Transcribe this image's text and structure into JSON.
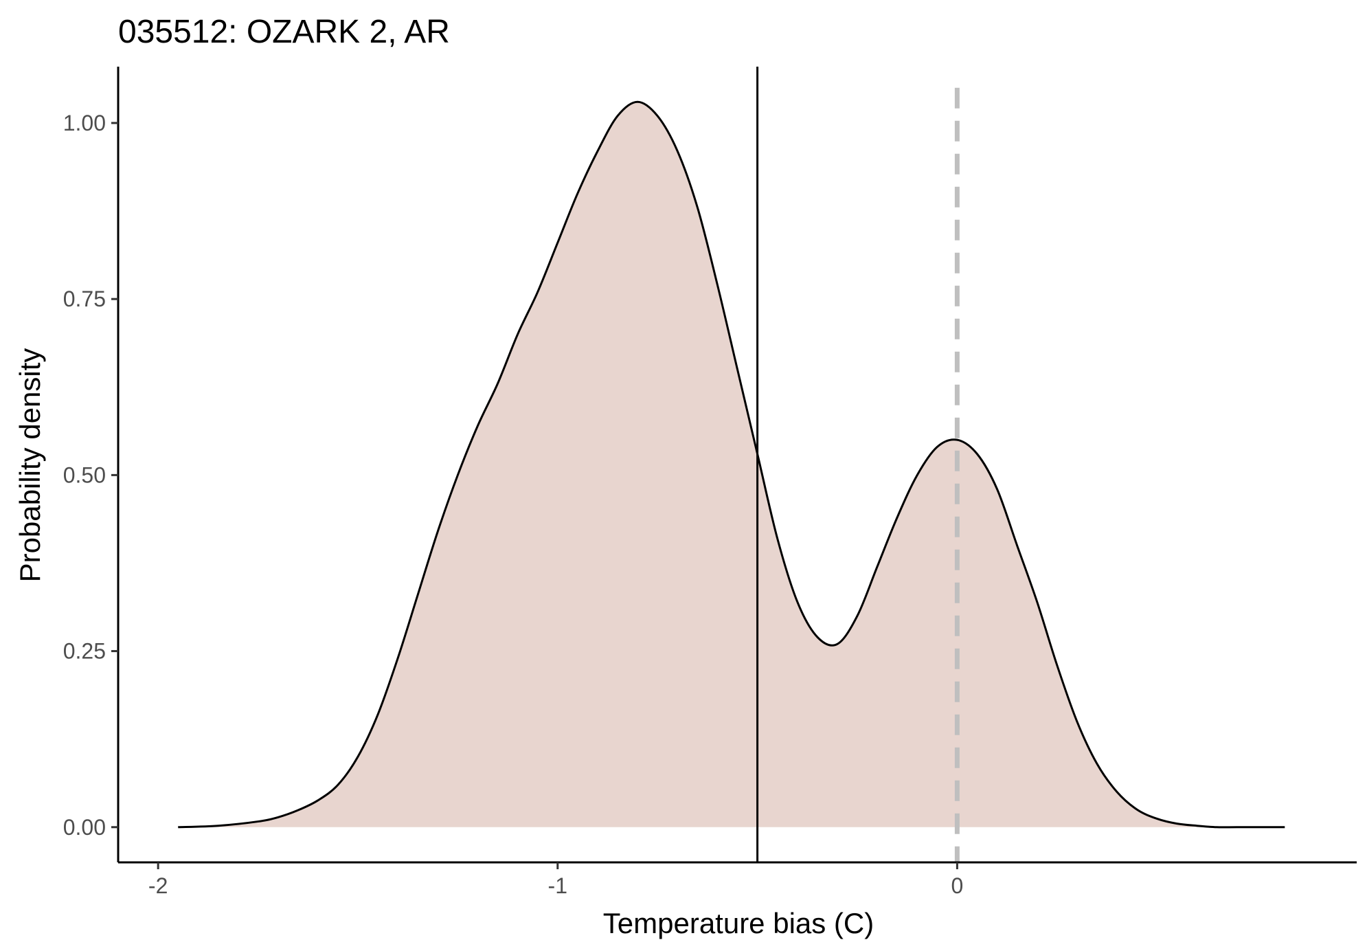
{
  "chart_data": {
    "type": "area",
    "title": "035512: OZARK 2, AR",
    "xlabel": "Temperature bias (C)",
    "ylabel": "Probability density",
    "xlim": [
      -2.1,
      1.0
    ],
    "ylim": [
      -0.05,
      1.08
    ],
    "x_ticks": [
      -2,
      -1,
      0
    ],
    "x_tick_labels": [
      "-2",
      "-1",
      "0"
    ],
    "y_ticks": [
      0,
      0.25,
      0.5,
      0.75,
      1.0
    ],
    "y_tick_labels": [
      "0.00",
      "0.25",
      "0.50",
      "0.75",
      "1.00"
    ],
    "grid": false,
    "legend": "none",
    "fill_color": "#e8d5cf",
    "line_color": "#000000",
    "series": [
      {
        "x": [
          -1.95,
          -1.85,
          -1.75,
          -1.7,
          -1.65,
          -1.6,
          -1.55,
          -1.5,
          -1.45,
          -1.4,
          -1.35,
          -1.3,
          -1.25,
          -1.2,
          -1.15,
          -1.1,
          -1.05,
          -1.0,
          -0.95,
          -0.9,
          -0.85,
          -0.8,
          -0.75,
          -0.7,
          -0.65,
          -0.6,
          -0.55,
          -0.5,
          -0.45,
          -0.4,
          -0.35,
          -0.3,
          -0.25,
          -0.2,
          -0.15,
          -0.1,
          -0.05,
          0.0,
          0.05,
          0.1,
          0.15,
          0.2,
          0.25,
          0.3,
          0.35,
          0.4,
          0.45,
          0.5,
          0.55,
          0.6,
          0.65,
          0.7,
          0.77,
          0.82
        ],
        "y": [
          0.0,
          0.002,
          0.008,
          0.014,
          0.024,
          0.038,
          0.06,
          0.1,
          0.16,
          0.24,
          0.33,
          0.42,
          0.5,
          0.57,
          0.63,
          0.7,
          0.76,
          0.83,
          0.9,
          0.96,
          1.01,
          1.03,
          1.01,
          0.96,
          0.88,
          0.77,
          0.65,
          0.53,
          0.41,
          0.32,
          0.27,
          0.26,
          0.3,
          0.37,
          0.44,
          0.5,
          0.54,
          0.55,
          0.53,
          0.48,
          0.4,
          0.32,
          0.23,
          0.15,
          0.09,
          0.05,
          0.025,
          0.012,
          0.005,
          0.002,
          0.0,
          0.0,
          0.0,
          0.0
        ]
      }
    ],
    "reference_lines": [
      {
        "x": -0.5,
        "style": "solid",
        "color": "#000000"
      },
      {
        "x": 0.0,
        "style": "dashed",
        "color": "#bfbfbf"
      }
    ]
  }
}
